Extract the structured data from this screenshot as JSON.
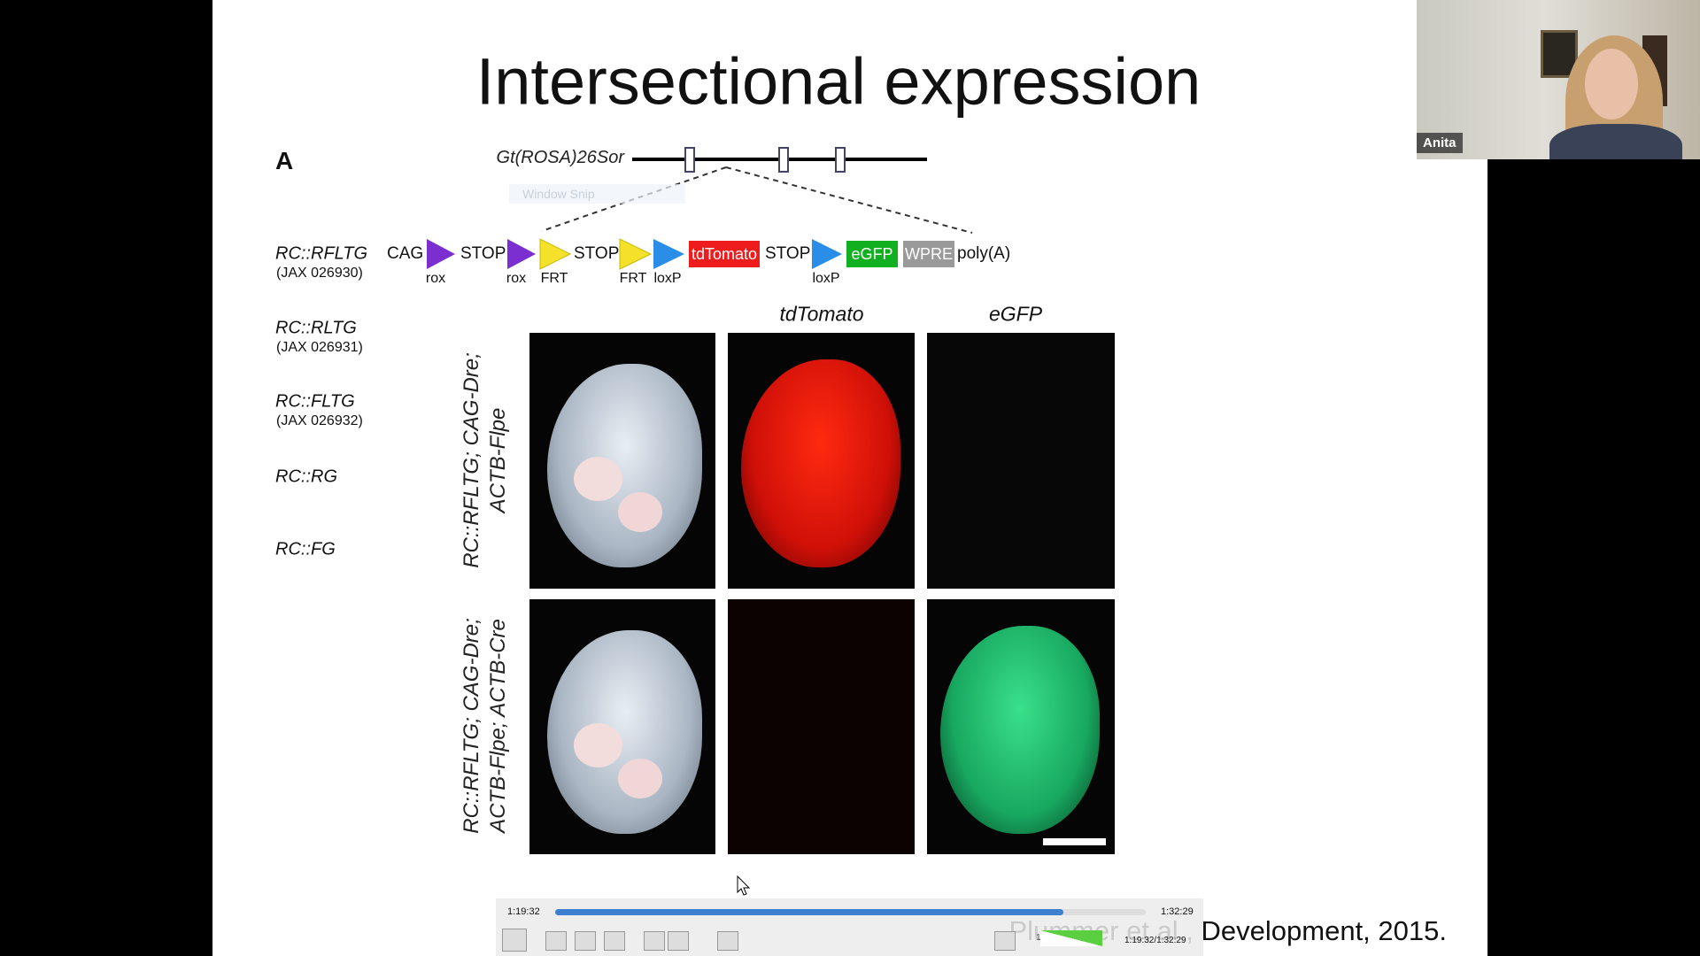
{
  "slide": {
    "title": "Intersectional expression",
    "panel_label": "A",
    "locus": "Gt(ROSA)26Sor",
    "window_snip": "Window Snip",
    "alleles": [
      {
        "name": "RC::RFLTG",
        "jax": "(JAX 026930)"
      },
      {
        "name": "RC::RLTG",
        "jax": "(JAX 026931)"
      },
      {
        "name": "RC::FLTG",
        "jax": "(JAX 026932)"
      },
      {
        "name": "RC::RG"
      },
      {
        "name": "RC::FG"
      }
    ],
    "construct": {
      "elements": [
        "CAG",
        "STOP",
        "STOP",
        "tdTomato",
        "STOP",
        "eGFP",
        "WPRE",
        "poly(A)"
      ],
      "sites": [
        "rox",
        "rox",
        "FRT",
        "FRT",
        "loxP",
        "loxP"
      ]
    },
    "columns": [
      "tdTomato",
      "eGFP"
    ],
    "row_genotypes": [
      [
        "RC::RFLTG; CAG-Dre;",
        "ACTB-Flpe"
      ],
      [
        "RC::RFLTG; CAG-Dre;",
        "ACTB-Flpe; ACTB-Cre"
      ]
    ],
    "citation": "Plummer et al., Development, 2015."
  },
  "player": {
    "elapsed": "1:19:32",
    "total": "1:32:29",
    "volume": "100%",
    "time_display": "1:19:32/1:32:29"
  },
  "participant": {
    "name": "Anita"
  }
}
